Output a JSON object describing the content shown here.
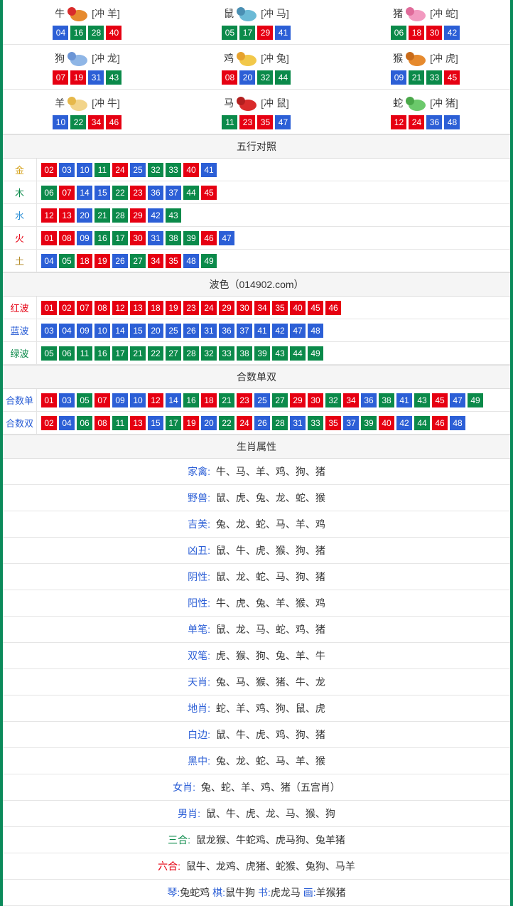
{
  "colors": {
    "border": "#0b8a5a",
    "red": "#e60012",
    "blue": "#2c5fd6",
    "green": "#0b8a4a",
    "header_bg": "#f5f5f5",
    "divider": "#e5e5e5"
  },
  "ball_color_map": {
    "01": "red",
    "02": "red",
    "07": "red",
    "08": "red",
    "12": "red",
    "13": "red",
    "18": "red",
    "19": "red",
    "23": "red",
    "24": "red",
    "29": "red",
    "30": "red",
    "34": "red",
    "35": "red",
    "40": "red",
    "45": "red",
    "46": "red",
    "03": "blue",
    "04": "blue",
    "09": "blue",
    "10": "blue",
    "14": "blue",
    "15": "blue",
    "20": "blue",
    "25": "blue",
    "26": "blue",
    "31": "blue",
    "36": "blue",
    "37": "blue",
    "41": "blue",
    "42": "blue",
    "47": "blue",
    "48": "blue",
    "05": "green",
    "06": "green",
    "11": "green",
    "16": "green",
    "17": "green",
    "21": "green",
    "22": "green",
    "27": "green",
    "28": "green",
    "32": "green",
    "33": "green",
    "38": "green",
    "39": "green",
    "43": "green",
    "44": "green",
    "49": "green"
  },
  "zodiac": [
    {
      "name": "牛",
      "conflict": "[冲 羊]",
      "numbers": [
        "04",
        "16",
        "28",
        "40"
      ],
      "icon_colors": [
        "#e68a2e",
        "#d92b2b"
      ]
    },
    {
      "name": "鼠",
      "conflict": "[冲 马]",
      "numbers": [
        "05",
        "17",
        "29",
        "41"
      ],
      "icon_colors": [
        "#6bbad6",
        "#4a8fb3"
      ]
    },
    {
      "name": "猪",
      "conflict": "[冲 蛇]",
      "numbers": [
        "06",
        "18",
        "30",
        "42"
      ],
      "icon_colors": [
        "#f29ac0",
        "#e06b9a"
      ]
    },
    {
      "name": "狗",
      "conflict": "[冲 龙]",
      "numbers": [
        "07",
        "19",
        "31",
        "43"
      ],
      "icon_colors": [
        "#8fb6e6",
        "#6b95d6"
      ]
    },
    {
      "name": "鸡",
      "conflict": "[冲 兔]",
      "numbers": [
        "08",
        "20",
        "32",
        "44"
      ],
      "icon_colors": [
        "#f2c84a",
        "#e6a22e"
      ]
    },
    {
      "name": "猴",
      "conflict": "[冲 虎]",
      "numbers": [
        "09",
        "21",
        "33",
        "45"
      ],
      "icon_colors": [
        "#e68a2e",
        "#c96b1a"
      ]
    },
    {
      "name": "羊",
      "conflict": "[冲 牛]",
      "numbers": [
        "10",
        "22",
        "34",
        "46"
      ],
      "icon_colors": [
        "#f2d48a",
        "#e6b84a"
      ]
    },
    {
      "name": "马",
      "conflict": "[冲 鼠]",
      "numbers": [
        "11",
        "23",
        "35",
        "47"
      ],
      "icon_colors": [
        "#d92b2b",
        "#b31f1f"
      ]
    },
    {
      "name": "蛇",
      "conflict": "[冲 猪]",
      "numbers": [
        "12",
        "24",
        "36",
        "48"
      ],
      "icon_colors": [
        "#6bc96b",
        "#4aa84a"
      ]
    }
  ],
  "wuxing_header": "五行对照",
  "wuxing": [
    {
      "label": "金",
      "label_class": "lbl-gold",
      "numbers": [
        "02",
        "03",
        "10",
        "11",
        "24",
        "25",
        "32",
        "33",
        "40",
        "41"
      ]
    },
    {
      "label": "木",
      "label_class": "lbl-wood",
      "numbers": [
        "06",
        "07",
        "14",
        "15",
        "22",
        "23",
        "36",
        "37",
        "44",
        "45"
      ]
    },
    {
      "label": "水",
      "label_class": "lbl-water",
      "numbers": [
        "12",
        "13",
        "20",
        "21",
        "28",
        "29",
        "42",
        "43"
      ]
    },
    {
      "label": "火",
      "label_class": "lbl-fire",
      "numbers": [
        "01",
        "08",
        "09",
        "16",
        "17",
        "30",
        "31",
        "38",
        "39",
        "46",
        "47"
      ]
    },
    {
      "label": "土",
      "label_class": "lbl-earth",
      "numbers": [
        "04",
        "05",
        "18",
        "19",
        "26",
        "27",
        "34",
        "35",
        "48",
        "49"
      ]
    }
  ],
  "bose_header": "波色（014902.com）",
  "bose": [
    {
      "label": "红波",
      "label_class": "lbl-red",
      "numbers": [
        "01",
        "02",
        "07",
        "08",
        "12",
        "13",
        "18",
        "19",
        "23",
        "24",
        "29",
        "30",
        "34",
        "35",
        "40",
        "45",
        "46"
      ]
    },
    {
      "label": "蓝波",
      "label_class": "lbl-blue",
      "numbers": [
        "03",
        "04",
        "09",
        "10",
        "14",
        "15",
        "20",
        "25",
        "26",
        "31",
        "36",
        "37",
        "41",
        "42",
        "47",
        "48"
      ]
    },
    {
      "label": "绿波",
      "label_class": "lbl-green",
      "numbers": [
        "05",
        "06",
        "11",
        "16",
        "17",
        "21",
        "22",
        "27",
        "28",
        "32",
        "33",
        "38",
        "39",
        "43",
        "44",
        "49"
      ]
    }
  ],
  "heshu_header": "合数单双",
  "heshu": [
    {
      "label": "合数单",
      "label_class": "lbl-blue",
      "numbers": [
        "01",
        "03",
        "05",
        "07",
        "09",
        "10",
        "12",
        "14",
        "16",
        "18",
        "21",
        "23",
        "25",
        "27",
        "29",
        "30",
        "32",
        "34",
        "36",
        "38",
        "41",
        "43",
        "45",
        "47",
        "49"
      ]
    },
    {
      "label": "合数双",
      "label_class": "lbl-blue",
      "numbers": [
        "02",
        "04",
        "06",
        "08",
        "11",
        "13",
        "15",
        "17",
        "19",
        "20",
        "22",
        "24",
        "26",
        "28",
        "31",
        "33",
        "35",
        "37",
        "39",
        "40",
        "42",
        "44",
        "46",
        "48"
      ]
    }
  ],
  "attr_header": "生肖属性",
  "attrs": [
    {
      "label": "家禽:",
      "label_color": "blue",
      "text": "牛、马、羊、鸡、狗、猪"
    },
    {
      "label": "野兽:",
      "label_color": "blue",
      "text": "鼠、虎、兔、龙、蛇、猴"
    },
    {
      "label": "吉美:",
      "label_color": "blue",
      "text": "兔、龙、蛇、马、羊、鸡"
    },
    {
      "label": "凶丑:",
      "label_color": "blue",
      "text": "鼠、牛、虎、猴、狗、猪"
    },
    {
      "label": "阴性:",
      "label_color": "blue",
      "text": "鼠、龙、蛇、马、狗、猪"
    },
    {
      "label": "阳性:",
      "label_color": "blue",
      "text": "牛、虎、兔、羊、猴、鸡"
    },
    {
      "label": "单笔:",
      "label_color": "blue",
      "text": "鼠、龙、马、蛇、鸡、猪"
    },
    {
      "label": "双笔:",
      "label_color": "blue",
      "text": "虎、猴、狗、兔、羊、牛"
    },
    {
      "label": "天肖:",
      "label_color": "blue",
      "text": "兔、马、猴、猪、牛、龙"
    },
    {
      "label": "地肖:",
      "label_color": "blue",
      "text": "蛇、羊、鸡、狗、鼠、虎"
    },
    {
      "label": "白边:",
      "label_color": "blue",
      "text": "鼠、牛、虎、鸡、狗、猪"
    },
    {
      "label": "黑中:",
      "label_color": "blue",
      "text": "兔、龙、蛇、马、羊、猴"
    },
    {
      "label": "女肖:",
      "label_color": "blue",
      "text": "兔、蛇、羊、鸡、猪（五宫肖）"
    },
    {
      "label": "男肖:",
      "label_color": "blue",
      "text": "鼠、牛、虎、龙、马、猴、狗"
    },
    {
      "label": "三合:",
      "label_color": "green",
      "text": "鼠龙猴、牛蛇鸡、虎马狗、兔羊猪"
    },
    {
      "label": "六合:",
      "label_color": "red",
      "text": "鼠牛、龙鸡、虎猪、蛇猴、兔狗、马羊"
    }
  ],
  "bottom": {
    "segments": [
      {
        "label": "琴:",
        "text": "兔蛇鸡"
      },
      {
        "label": "棋:",
        "text": "鼠牛狗"
      },
      {
        "label": "书:",
        "text": "虎龙马"
      },
      {
        "label": "画:",
        "text": "羊猴猪"
      }
    ]
  }
}
